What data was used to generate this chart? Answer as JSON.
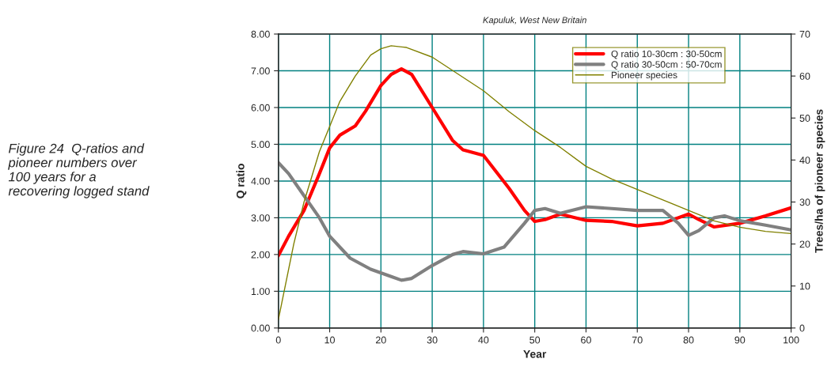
{
  "chart_data": {
    "type": "line",
    "title": "Kapuluk, West New Britain",
    "xlabel": "Year",
    "ylabel": "Q ratio",
    "y2label": "Trees/ha of pioneer species",
    "annotations": [
      "Figure 24  Q-ratios and\npioneer numbers over\n100 years for a\nrecovering logged stand"
    ],
    "series": [
      {
        "name": "Q ratio 10-30cm : 30-50cm",
        "color": "#ff0000",
        "x": [
          0,
          2,
          5,
          8,
          10,
          12,
          15,
          17,
          20,
          22,
          24,
          26,
          30,
          34,
          36,
          40,
          45,
          48,
          50,
          52,
          55,
          60,
          65,
          70,
          75,
          80,
          82,
          85,
          90,
          95,
          100
        ],
        "values": [
          1.97,
          2.5,
          3.2,
          4.2,
          4.9,
          5.25,
          5.5,
          5.9,
          6.6,
          6.9,
          7.05,
          6.9,
          6.0,
          5.1,
          4.85,
          4.7,
          3.8,
          3.2,
          2.9,
          2.95,
          3.1,
          2.93,
          2.9,
          2.78,
          2.85,
          3.1,
          2.95,
          2.75,
          2.85,
          3.05,
          3.27
        ]
      },
      {
        "name": "Q ratio 30-50cm : 50-70cm",
        "color": "#808080",
        "x": [
          0,
          2,
          5,
          8,
          10,
          14,
          18,
          22,
          24,
          26,
          30,
          34,
          36,
          40,
          44,
          48,
          50,
          52,
          55,
          60,
          65,
          70,
          75,
          78,
          80,
          82,
          85,
          87,
          90,
          95,
          100
        ],
        "values": [
          4.5,
          4.2,
          3.6,
          3.0,
          2.5,
          1.9,
          1.6,
          1.4,
          1.3,
          1.35,
          1.7,
          2.0,
          2.08,
          2.02,
          2.2,
          2.85,
          3.2,
          3.25,
          3.12,
          3.3,
          3.25,
          3.2,
          3.2,
          2.85,
          2.52,
          2.65,
          3.0,
          3.05,
          2.92,
          2.8,
          2.67
        ]
      },
      {
        "name": "Pioneer species",
        "color": "#808000",
        "axis": "y2",
        "x": [
          0,
          3,
          5,
          8,
          10,
          12,
          15,
          18,
          20,
          22,
          25,
          30,
          35,
          40,
          45,
          50,
          55,
          60,
          65,
          70,
          75,
          80,
          85,
          90,
          95,
          100
        ],
        "values": [
          2,
          20,
          30,
          42,
          48,
          54,
          60,
          65,
          66.5,
          67.2,
          66.8,
          64.5,
          60.5,
          56.5,
          51.5,
          47,
          43,
          38.5,
          35.5,
          33,
          30.5,
          28,
          25.5,
          24,
          23,
          22.5
        ]
      }
    ],
    "xlim": [
      0,
      100
    ],
    "xticks": [
      0,
      10,
      20,
      30,
      40,
      50,
      60,
      70,
      80,
      90,
      100
    ],
    "ylim": [
      0,
      8
    ],
    "yticks": [
      {
        "value": 0,
        "label": "0.00"
      },
      {
        "value": 1,
        "label": "1.00"
      },
      {
        "value": 2,
        "label": "2.00"
      },
      {
        "value": 3,
        "label": "3.00"
      },
      {
        "value": 4,
        "label": "4.00"
      },
      {
        "value": 5,
        "label": "5.00"
      },
      {
        "value": 6,
        "label": "6.00"
      },
      {
        "value": 7,
        "label": "7.00"
      },
      {
        "value": 8,
        "label": "8.00"
      }
    ],
    "y2lim": [
      0,
      70
    ],
    "y2ticks": [
      0,
      10,
      20,
      30,
      40,
      50,
      60,
      70
    ],
    "grid": true,
    "legend": "top right"
  }
}
